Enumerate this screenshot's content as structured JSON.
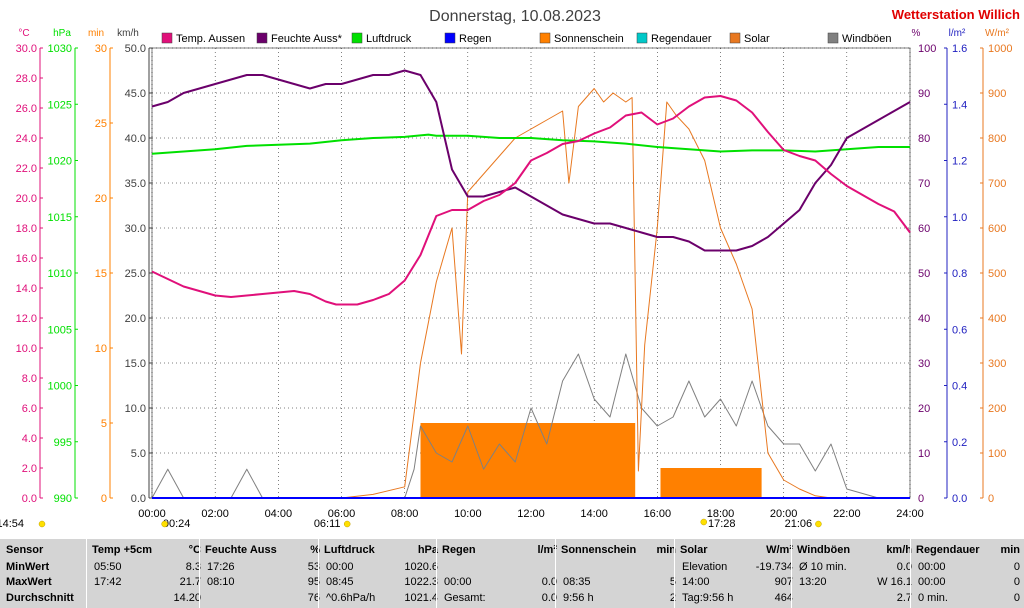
{
  "title": "Donnerstag, 10.08.2023",
  "station": "Wetterstation Willich",
  "colors": {
    "temp": "#e0107a",
    "hum": "#6b006b",
    "press": "#00e000",
    "rain": "#0000ff",
    "sun": "#ff8000",
    "raindur": "#00c8c8",
    "solar": "#e87820",
    "gust": "#808080",
    "stationRed": "#e00000"
  },
  "axes": {
    "temp": {
      "unit": "°C",
      "ticks": [
        "30.0",
        "28.0",
        "26.0",
        "24.0",
        "22.0",
        "20.0",
        "18.0",
        "16.0",
        "14.0",
        "12.0",
        "10.0",
        "8.0",
        "6.0",
        "4.0",
        "2.0",
        "0.0"
      ]
    },
    "press": {
      "unit": "hPa",
      "ticks": [
        "1030",
        "1025",
        "1020",
        "1015",
        "1010",
        "1005",
        "1000",
        "995",
        "990"
      ]
    },
    "min": {
      "unit": "min",
      "ticks": [
        "30",
        "25",
        "20",
        "15",
        "10",
        "5",
        "0"
      ]
    },
    "kmh": {
      "unit": "km/h",
      "ticks": [
        "50.0",
        "45.0",
        "40.0",
        "35.0",
        "30.0",
        "25.0",
        "20.0",
        "15.0",
        "10.0",
        "5.0",
        "0.0"
      ]
    },
    "pct": {
      "unit": "%",
      "ticks": [
        "100",
        "90",
        "80",
        "70",
        "60",
        "50",
        "40",
        "30",
        "20",
        "10",
        "0"
      ]
    },
    "rain": {
      "unit": "l/m²",
      "ticks": [
        "1.6",
        "1.4",
        "1.2",
        "1.0",
        "0.8",
        "0.6",
        "0.4",
        "0.2",
        "0.0"
      ]
    },
    "solar": {
      "unit": "W/m²",
      "ticks": [
        "1000",
        "900",
        "800",
        "700",
        "600",
        "500",
        "400",
        "300",
        "200",
        "100",
        "0"
      ]
    },
    "x": {
      "ticks": [
        "00:00",
        "02:00",
        "04:00",
        "06:00",
        "08:00",
        "10:00",
        "12:00",
        "14:00",
        "16:00",
        "18:00",
        "20:00",
        "22:00",
        "24:00"
      ]
    }
  },
  "legend": [
    "Temp. Aussen",
    "Feuchte Auss*",
    "Luftdruck",
    "Regen",
    "Sonnenschein",
    "Regendauer",
    "Solar",
    "Windböen"
  ],
  "markers": {
    "now": "14:54",
    "moonrise": "00:24",
    "sunrise": "06:11",
    "moonset": "17:28",
    "sunset": "21:06"
  },
  "chart_data": {
    "type": "line",
    "x_unit": "hour of day",
    "xlim": [
      0,
      24
    ],
    "series": [
      {
        "name": "Temp. Aussen",
        "unit": "°C",
        "axis": [
          0,
          30
        ],
        "x": [
          0,
          0.5,
          1,
          1.5,
          2,
          2.5,
          3,
          3.5,
          4,
          4.5,
          5,
          5.5,
          5.83,
          6,
          6.5,
          7,
          7.5,
          8,
          8.5,
          9,
          9.5,
          10,
          10.5,
          11,
          11.5,
          12,
          12.5,
          13,
          13.5,
          14,
          14.5,
          15,
          15.5,
          16,
          16.5,
          17,
          17.5,
          18,
          18.5,
          19,
          19.5,
          20,
          20.5,
          21,
          21.5,
          22,
          22.5,
          23,
          23.5,
          24
        ],
        "y": [
          15.1,
          14.6,
          14.1,
          13.8,
          13.5,
          13.4,
          13.5,
          13.6,
          13.7,
          13.8,
          13.6,
          13.1,
          12.9,
          12.9,
          12.9,
          13.2,
          13.6,
          14.5,
          16.2,
          18.8,
          19.2,
          19.2,
          19.8,
          20.2,
          21.0,
          22.5,
          23.0,
          23.6,
          23.8,
          24.3,
          24.7,
          25.5,
          25.7,
          24.9,
          25.3,
          26.1,
          26.7,
          26.8,
          26.5,
          25.7,
          24.4,
          23.2,
          22.8,
          22.5,
          21.6,
          20.8,
          20.2,
          19.6,
          19.1,
          17.7
        ]
      },
      {
        "name": "Feuchte Auss*",
        "unit": "%",
        "axis": [
          0,
          100
        ],
        "x": [
          0,
          0.5,
          1,
          1.5,
          2,
          2.5,
          3,
          3.5,
          4,
          4.5,
          5,
          5.5,
          6,
          6.5,
          7,
          7.5,
          8,
          8.5,
          9,
          9.5,
          10,
          10.5,
          11,
          11.5,
          12,
          12.5,
          13,
          13.5,
          14,
          14.5,
          15,
          15.5,
          16,
          16.5,
          17,
          17.5,
          18,
          18.5,
          19,
          19.5,
          20,
          20.5,
          21,
          21.5,
          22,
          22.5,
          23,
          23.5,
          24
        ],
        "y": [
          87,
          88,
          90,
          91,
          92,
          93,
          94,
          94,
          93,
          92,
          91,
          92,
          92,
          93,
          94,
          94,
          95,
          94,
          88,
          73,
          67,
          67,
          68,
          69,
          67,
          65,
          63,
          62,
          61,
          61,
          60,
          59,
          58,
          58,
          57,
          55,
          55,
          55,
          56,
          58,
          61,
          64,
          70,
          74,
          80,
          82,
          84,
          86,
          88
        ]
      },
      {
        "name": "Luftdruck",
        "unit": "hPa",
        "axis": [
          990,
          1030
        ],
        "x": [
          0,
          1,
          2,
          3,
          4,
          5,
          6,
          7,
          8,
          8.75,
          9,
          10,
          11,
          12,
          13,
          14,
          15,
          16,
          17,
          18,
          19,
          20,
          21,
          22,
          23,
          24
        ],
        "y": [
          1020.6,
          1020.8,
          1021.0,
          1021.3,
          1021.4,
          1021.5,
          1021.8,
          1022.0,
          1022.1,
          1022.3,
          1022.2,
          1022.2,
          1022.0,
          1022.0,
          1021.8,
          1021.7,
          1021.5,
          1021.2,
          1021.0,
          1020.8,
          1020.9,
          1020.9,
          1020.8,
          1021.0,
          1021.2,
          1021.2
        ]
      },
      {
        "name": "Regen",
        "unit": "l/m²",
        "axis": [
          0,
          1.6
        ],
        "x": [
          0,
          24
        ],
        "y": [
          0,
          0
        ]
      },
      {
        "name": "Sonnenschein",
        "unit": "min",
        "axis": [
          0,
          30
        ],
        "x": [
          0,
          8.5,
          8.5,
          15.3,
          15.3,
          16.1,
          16.1,
          19.3,
          19.3,
          24
        ],
        "y": [
          0,
          0,
          5,
          5,
          0,
          0,
          2,
          2,
          0,
          0
        ]
      },
      {
        "name": "Solar",
        "unit": "W/m²",
        "axis": [
          0,
          1000
        ],
        "x": [
          0,
          6,
          7,
          8,
          8.5,
          9,
          9.5,
          9.8,
          10,
          10.5,
          11,
          11.5,
          12,
          12.5,
          13,
          13.2,
          13.5,
          14,
          14.3,
          14.6,
          15,
          15.2,
          15.4,
          15.6,
          16,
          16.3,
          16.6,
          17,
          17.5,
          18,
          18.5,
          19,
          19.5,
          20,
          20.5,
          21,
          21.5
        ],
        "y": [
          0,
          0,
          8,
          25,
          300,
          480,
          600,
          320,
          680,
          720,
          760,
          800,
          820,
          840,
          860,
          700,
          870,
          910,
          880,
          900,
          880,
          890,
          60,
          340,
          600,
          880,
          850,
          820,
          750,
          600,
          520,
          420,
          100,
          40,
          20,
          5,
          0
        ]
      },
      {
        "name": "Windböen",
        "unit": "km/h",
        "axis": [
          0,
          50
        ],
        "x": [
          0,
          0.5,
          1,
          1.5,
          2,
          2.5,
          3,
          3.5,
          4,
          5,
          6,
          7,
          8,
          8.3,
          8.5,
          9,
          9.5,
          10,
          10.5,
          11,
          11.5,
          12,
          12.5,
          13,
          13.5,
          14,
          14.5,
          15,
          15.5,
          16,
          16.5,
          17,
          17.5,
          18,
          18.5,
          19,
          19.5,
          20,
          20.5,
          21,
          21.5,
          22,
          23,
          24
        ],
        "y": [
          0,
          3.2,
          0,
          0,
          0,
          0,
          3.2,
          0,
          0,
          0,
          0,
          0,
          0,
          3.2,
          8,
          5,
          4,
          8,
          3.2,
          6,
          4,
          10,
          6,
          13,
          16,
          11,
          9,
          16,
          10,
          8,
          9,
          13,
          9,
          11,
          8,
          13,
          8,
          6,
          6,
          3,
          6,
          1,
          0,
          0
        ]
      }
    ]
  },
  "stats": {
    "labels": [
      "Sensor",
      "MinWert",
      "MaxWert",
      "Durchschnitt"
    ],
    "columns": [
      {
        "title": "Temp +5cm",
        "unit": "°C",
        "rows": [
          [
            "05:50",
            "8.3"
          ],
          [
            "17:42",
            "21.7"
          ],
          [
            "",
            "14.20"
          ]
        ]
      },
      {
        "title": "Feuchte Auss",
        "unit": "%",
        "rows": [
          [
            "17:26",
            "53"
          ],
          [
            "08:10",
            "95"
          ],
          [
            "",
            "76"
          ]
        ]
      },
      {
        "title": "Luftdruck",
        "unit": "hPa",
        "rows": [
          [
            "00:00",
            "1020.6"
          ],
          [
            "08:45",
            "1022.3"
          ],
          [
            "^0.6hPa/h",
            "1021.4"
          ]
        ]
      },
      {
        "title": "Regen",
        "unit": "l/m²",
        "rows": [
          [
            "",
            ""
          ],
          [
            "00:00",
            "0.0"
          ],
          [
            "Gesamt:",
            "0.0"
          ]
        ]
      },
      {
        "title": "Sonnenschein",
        "unit": "min",
        "rows": [
          [
            "",
            ""
          ],
          [
            "08:35",
            "5"
          ],
          [
            "9:56 h",
            "2"
          ]
        ]
      },
      {
        "title": "Solar",
        "unit": "W/m²",
        "rows": [
          [
            "Elevation",
            "-19.734"
          ],
          [
            "14:00",
            "907"
          ],
          [
            "Tag:9:56 h",
            "464"
          ]
        ]
      },
      {
        "title": "Windböen",
        "unit": "km/h",
        "rows": [
          [
            "Ø 10 min.",
            "0.0"
          ],
          [
            "13:20",
            "W 16.1"
          ],
          [
            "",
            "2.7"
          ]
        ]
      },
      {
        "title": "Regendauer",
        "unit": "min",
        "rows": [
          [
            "00:00",
            "0"
          ],
          [
            "00:00",
            "0"
          ],
          [
            "0 min.",
            "0"
          ]
        ]
      }
    ]
  }
}
